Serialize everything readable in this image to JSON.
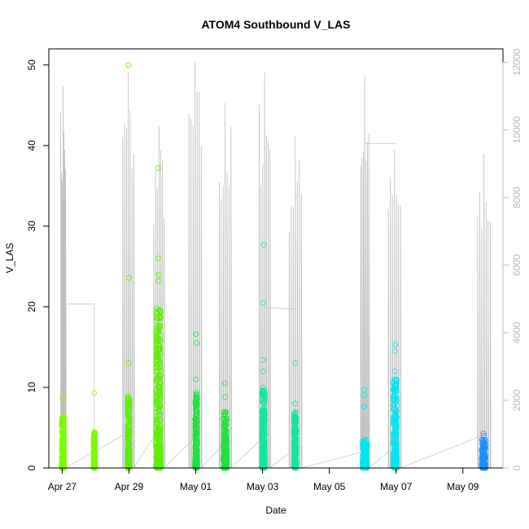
{
  "chart_data": {
    "type": "scatter",
    "title": "ATOM4 Southbound V_LAS",
    "xlabel": "Date",
    "ylabel": "V_LAS",
    "x_tick_labels": [
      "Apr 27",
      "Apr 29",
      "May 01",
      "May 03",
      "May 05",
      "May 07",
      "May 09"
    ],
    "x_tick_days": [
      0,
      2,
      4,
      6,
      8,
      10,
      12
    ],
    "xlim_days": [
      -0.4,
      13.2
    ],
    "ylim": [
      0,
      52
    ],
    "y_ticks": [
      0,
      10,
      20,
      30,
      40,
      50
    ],
    "right_axis": {
      "ticks": [
        0,
        2000,
        4000,
        6000,
        8000,
        10000,
        12000
      ],
      "ylim": [
        0,
        12400
      ],
      "color": "#bbbbbb"
    },
    "series": [
      {
        "color": "#7cfc00",
        "clusters": [
          {
            "day": 0.02,
            "width": 0.07,
            "ymax": 6.5,
            "outliers": [
              8.6,
              5.9
            ]
          },
          {
            "day": 0.96,
            "width": 0.05,
            "ymax": 4.5,
            "outliers": [
              9.3
            ]
          }
        ]
      },
      {
        "color": "#5cf000",
        "clusters": [
          {
            "day": 1.99,
            "width": 0.06,
            "ymax": 9.0,
            "outliers": [
              50.0,
              23.6,
              13.0
            ]
          },
          {
            "day": 2.88,
            "width": 0.15,
            "ymax": 20.0,
            "outliers": [
              37.2,
              26.0,
              24.0,
              23.2
            ]
          }
        ]
      },
      {
        "color": "#22e040",
        "clusters": [
          {
            "day": 4.01,
            "width": 0.07,
            "ymax": 9.5,
            "outliers": [
              16.6,
              15.5,
              11.0
            ]
          },
          {
            "day": 4.88,
            "width": 0.12,
            "ymax": 7.0,
            "outliers": [
              10.5,
              8.8
            ]
          }
        ]
      },
      {
        "color": "#10e6a0",
        "clusters": [
          {
            "day": 6.03,
            "width": 0.09,
            "ymax": 10.0,
            "outliers": [
              27.7,
              20.5,
              13.4,
              12.0
            ]
          },
          {
            "day": 6.98,
            "width": 0.06,
            "ymax": 7.0,
            "outliers": [
              13.0,
              8.0
            ]
          }
        ]
      },
      {
        "color": "#00e6f0",
        "clusters": [
          {
            "day": 9.06,
            "width": 0.14,
            "ymax": 3.5,
            "outliers": [
              9.7,
              9.0,
              7.6
            ]
          },
          {
            "day": 9.97,
            "width": 0.12,
            "ymax": 11.0,
            "outliers": [
              15.3,
              14.5,
              12.0
            ]
          }
        ]
      },
      {
        "color": "#1e90ff",
        "clusters": [
          {
            "day": 12.62,
            "width": 0.12,
            "ymax": 3.6,
            "outliers": [
              4.3,
              4.0
            ]
          }
        ]
      }
    ],
    "right_axis_lines": [
      {
        "day": 0.03,
        "peak": 11300
      },
      {
        "day": 1.98,
        "peak": 11700
      },
      {
        "day": 2.9,
        "peak": 10100
      },
      {
        "day": 3.98,
        "peak": 12000
      },
      {
        "day": 4.88,
        "peak": 10800
      },
      {
        "day": 6.06,
        "peak": 11700
      },
      {
        "day": 6.98,
        "peak": 9800
      },
      {
        "day": 9.06,
        "peak": 11600
      },
      {
        "day": 9.95,
        "peak": 9400
      },
      {
        "day": 12.63,
        "peak": 9300
      }
    ]
  }
}
